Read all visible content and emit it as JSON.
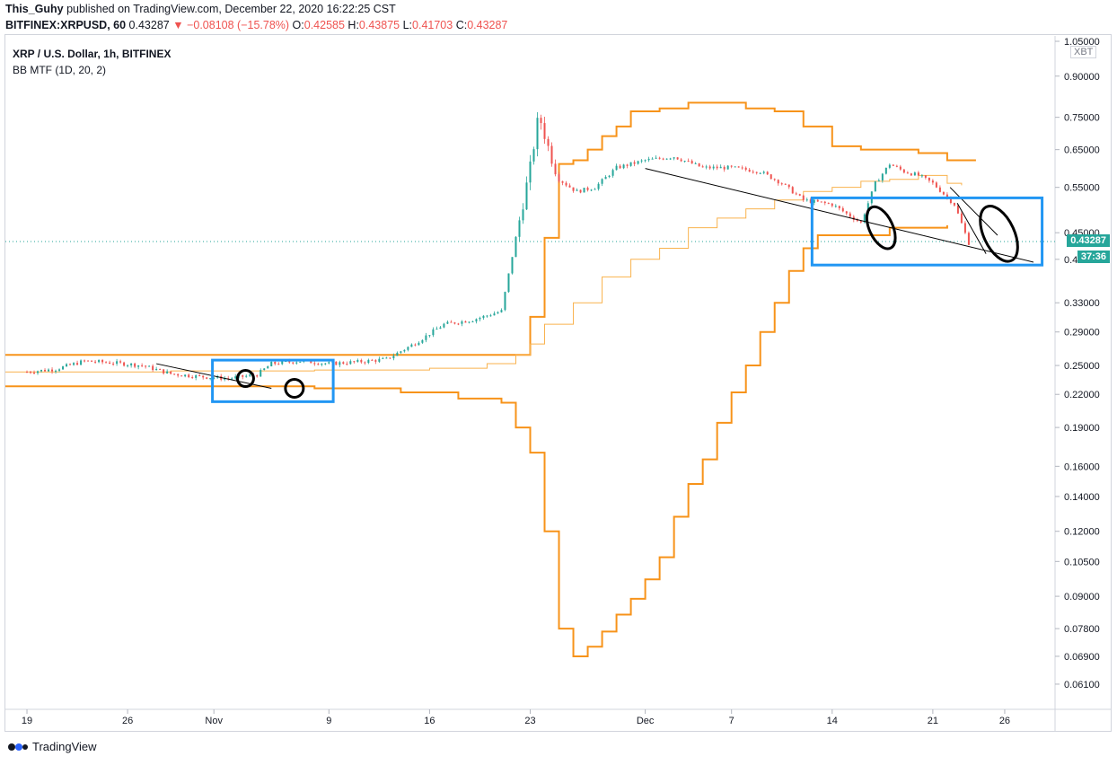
{
  "header": {
    "publisher": "This_Guhy",
    "published_text": "published on TradingView.com, December 22, 2020 16:22:25 CST",
    "symbol": "BITFINEX:XRPUSD, 60",
    "last": "0.43287",
    "change": "−0.08108 (−15.78%)",
    "o_label": "O:",
    "o": "0.42585",
    "h_label": "H:",
    "h": "0.43875",
    "l_label": "L:",
    "l": "0.41703",
    "c_label": "C:",
    "c": "0.43287"
  },
  "legend": {
    "title": "XRP / U.S. Dollar, 1h, BITFINEX",
    "indicator": "BB MTF (1D, 20, 2)"
  },
  "axis_badge": "XBT",
  "price_tags": {
    "last_price": "0.43287",
    "countdown": "37:36"
  },
  "footer": {
    "brand": "TradingView"
  },
  "colors": {
    "band": "#f7931a",
    "band_light": "#f9b24d",
    "box": "#2196f3",
    "trend": "#000000",
    "up": "#26a69a",
    "down": "#ef5350"
  },
  "chart_data": {
    "type": "line",
    "y_scale": "log",
    "ylim": [
      0.055,
      1.05
    ],
    "y_ticks": [
      "1.05000",
      "0.90000",
      "0.75000",
      "0.65000",
      "0.55000",
      "0.45000",
      "0.40000",
      "0.33000",
      "0.29000",
      "0.25000",
      "0.22000",
      "0.19000",
      "0.16000",
      "0.14000",
      "0.12000",
      "0.10500",
      "0.09000",
      "0.07800",
      "0.06900",
      "0.06100"
    ],
    "y_tick_values": [
      1.05,
      0.9,
      0.75,
      0.65,
      0.55,
      0.45,
      0.4,
      0.33,
      0.29,
      0.25,
      0.22,
      0.19,
      0.16,
      0.14,
      0.12,
      0.105,
      0.09,
      0.078,
      0.069,
      0.061
    ],
    "x_ticks": [
      "19",
      "26",
      "Nov",
      "9",
      "16",
      "23",
      "Dec",
      "7",
      "14",
      "21",
      "26"
    ],
    "x_tick_days": [
      0,
      7,
      13,
      21,
      28,
      35,
      43,
      49,
      56,
      63,
      68
    ],
    "xlim": [
      -1.5,
      71.5
    ],
    "last_price": 0.43287,
    "series": [
      {
        "kind": "price",
        "points": [
          [
            0,
            0.243
          ],
          [
            2,
            0.246
          ],
          [
            4,
            0.255
          ],
          [
            6,
            0.253
          ],
          [
            8,
            0.25
          ],
          [
            10,
            0.241
          ],
          [
            12,
            0.238
          ],
          [
            14,
            0.236
          ],
          [
            16,
            0.24
          ],
          [
            17,
            0.252
          ],
          [
            19,
            0.255
          ],
          [
            21,
            0.252
          ],
          [
            23,
            0.254
          ],
          [
            25,
            0.257
          ],
          [
            27,
            0.276
          ],
          [
            29,
            0.3
          ],
          [
            31,
            0.306
          ],
          [
            33,
            0.318
          ],
          [
            34,
            0.44
          ],
          [
            35,
            0.6
          ],
          [
            35.6,
            0.76
          ],
          [
            36.3,
            0.65
          ],
          [
            37,
            0.57
          ],
          [
            38.2,
            0.54
          ],
          [
            39.5,
            0.55
          ],
          [
            41,
            0.6
          ],
          [
            43,
            0.62
          ],
          [
            45,
            0.63
          ],
          [
            47,
            0.6
          ],
          [
            49,
            0.6
          ],
          [
            51,
            0.59
          ],
          [
            52.5,
            0.56
          ],
          [
            54,
            0.52
          ],
          [
            56,
            0.51
          ],
          [
            58,
            0.47
          ],
          [
            59,
            0.56
          ],
          [
            60,
            0.61
          ],
          [
            61,
            0.59
          ],
          [
            62,
            0.58
          ],
          [
            63,
            0.56
          ],
          [
            64.5,
            0.51
          ],
          [
            65.5,
            0.43
          ]
        ]
      },
      {
        "kind": "upper_band",
        "color": "#f7931a",
        "points": [
          [
            -1.5,
            0.262
          ],
          [
            16,
            0.262
          ],
          [
            34,
            0.262
          ],
          [
            35,
            0.31
          ],
          [
            36,
            0.44
          ],
          [
            37,
            0.61
          ],
          [
            38,
            0.62
          ],
          [
            39,
            0.65
          ],
          [
            40,
            0.69
          ],
          [
            41,
            0.72
          ],
          [
            42,
            0.77
          ],
          [
            44,
            0.78
          ],
          [
            46,
            0.8
          ],
          [
            50,
            0.78
          ],
          [
            52,
            0.77
          ],
          [
            54,
            0.72
          ],
          [
            56,
            0.66
          ],
          [
            58,
            0.65
          ],
          [
            62,
            0.64
          ],
          [
            64,
            0.62
          ],
          [
            66,
            0.62
          ]
        ]
      },
      {
        "kind": "lower_band",
        "color": "#f7931a",
        "points": [
          [
            -1.5,
            0.228
          ],
          [
            20,
            0.226
          ],
          [
            26,
            0.222
          ],
          [
            30,
            0.216
          ],
          [
            33,
            0.212
          ],
          [
            34,
            0.19
          ],
          [
            35,
            0.17
          ],
          [
            36,
            0.12
          ],
          [
            37,
            0.078
          ],
          [
            38,
            0.069
          ],
          [
            39,
            0.072
          ],
          [
            40,
            0.077
          ],
          [
            41,
            0.083
          ],
          [
            42,
            0.089
          ],
          [
            43,
            0.097
          ],
          [
            44,
            0.107
          ],
          [
            45,
            0.128
          ],
          [
            46,
            0.148
          ],
          [
            47,
            0.165
          ],
          [
            48,
            0.194
          ],
          [
            49,
            0.222
          ],
          [
            50,
            0.25
          ],
          [
            51,
            0.29
          ],
          [
            52,
            0.33
          ],
          [
            53,
            0.38
          ],
          [
            54,
            0.42
          ],
          [
            55,
            0.445
          ],
          [
            56,
            0.445
          ],
          [
            60,
            0.46
          ],
          [
            62,
            0.46
          ],
          [
            64,
            0.465
          ]
        ]
      },
      {
        "kind": "basis",
        "color": "#f9b24d",
        "points": [
          [
            -1.5,
            0.243
          ],
          [
            10,
            0.244
          ],
          [
            20,
            0.245
          ],
          [
            28,
            0.247
          ],
          [
            32,
            0.252
          ],
          [
            34,
            0.262
          ],
          [
            35,
            0.275
          ],
          [
            36,
            0.3
          ],
          [
            38,
            0.33
          ],
          [
            40,
            0.37
          ],
          [
            42,
            0.4
          ],
          [
            44,
            0.42
          ],
          [
            46,
            0.46
          ],
          [
            48,
            0.48
          ],
          [
            50,
            0.5
          ],
          [
            52,
            0.52
          ],
          [
            54,
            0.54
          ],
          [
            56,
            0.55
          ],
          [
            58,
            0.565
          ],
          [
            60,
            0.57
          ],
          [
            62,
            0.58
          ],
          [
            64,
            0.56
          ],
          [
            65,
            0.555
          ]
        ]
      }
    ]
  }
}
